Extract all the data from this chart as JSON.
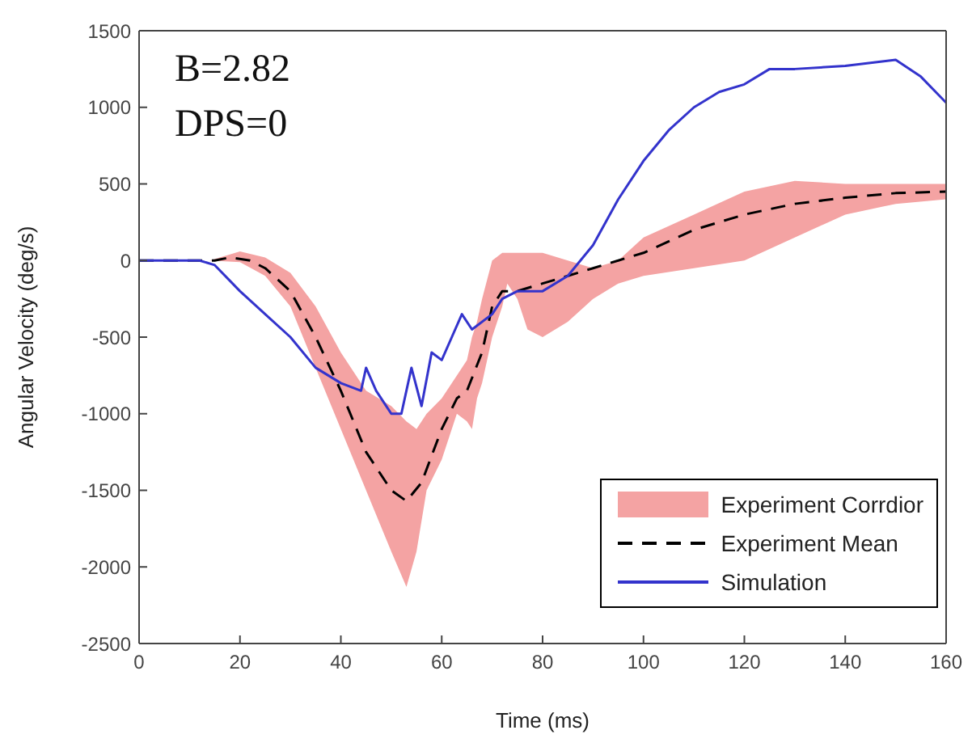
{
  "chart_data": {
    "type": "line",
    "xlabel": "Time (ms)",
    "ylabel": "Angular Velocity (deg/s)",
    "xlim": [
      0,
      160
    ],
    "xticks": [
      0,
      20,
      40,
      60,
      80,
      100,
      120,
      140,
      160
    ],
    "ylim": [
      -2500,
      1500
    ],
    "yticks": [
      -2500,
      -2000,
      -1500,
      -1000,
      -500,
      0,
      500,
      1000,
      1500
    ],
    "legend": "bottom right",
    "grid": false,
    "annotations": [
      "B=2.82",
      "DPS=0"
    ],
    "series": [
      {
        "name": "Experiment Corrdior",
        "type": "area",
        "color": "#f4a3a3",
        "x": [
          0,
          14,
          20,
          25,
          30,
          35,
          40,
          45,
          50,
          53,
          55,
          57,
          60,
          63,
          65,
          66,
          67,
          68,
          70,
          72,
          73,
          75,
          77,
          80,
          85,
          90,
          95,
          100,
          110,
          120,
          130,
          140,
          150,
          160
        ],
        "values": [
          null,
          null,
          null,
          null,
          null,
          null,
          null,
          null,
          null,
          null,
          null,
          null,
          null,
          null,
          null,
          null,
          null,
          null,
          null,
          null,
          null,
          null,
          null,
          null,
          null,
          null,
          null,
          null,
          null,
          null,
          null,
          null,
          null,
          null
        ],
        "lower": [
          0,
          0,
          -10,
          -100,
          -300,
          -700,
          -1100,
          -1500,
          -1900,
          -2130,
          -1900,
          -1500,
          -1300,
          -1000,
          -1050,
          -1100,
          -900,
          -800,
          -500,
          -300,
          -150,
          -250,
          -450,
          -500,
          -400,
          -250,
          -150,
          -100,
          -50,
          0,
          150,
          300,
          370,
          400
        ],
        "upper": [
          0,
          0,
          60,
          20,
          -80,
          -300,
          -600,
          -850,
          -950,
          -1050,
          -1100,
          -1000,
          -900,
          -750,
          -650,
          -500,
          -400,
          -250,
          0,
          50,
          50,
          50,
          50,
          50,
          0,
          -50,
          0,
          150,
          300,
          450,
          520,
          500,
          500,
          500
        ]
      },
      {
        "name": "Experiment Mean",
        "color": "#000000",
        "line_style": "dashed",
        "x": [
          0,
          15,
          18,
          22,
          25,
          30,
          35,
          40,
          45,
          50,
          53,
          56,
          60,
          63,
          65,
          68,
          70,
          72,
          75,
          80,
          85,
          90,
          95,
          100,
          110,
          120,
          130,
          140,
          150,
          160
        ],
        "values": [
          0,
          0,
          20,
          0,
          -50,
          -200,
          -500,
          -850,
          -1250,
          -1500,
          -1570,
          -1450,
          -1100,
          -900,
          -850,
          -600,
          -300,
          -200,
          -200,
          -150,
          -100,
          -50,
          0,
          50,
          200,
          300,
          370,
          410,
          440,
          450
        ]
      },
      {
        "name": "Simulation",
        "color": "#3333cc",
        "line_style": "solid",
        "x": [
          0,
          12,
          15,
          20,
          25,
          30,
          35,
          40,
          44,
          45,
          47,
          50,
          52,
          54,
          56,
          58,
          60,
          62,
          64,
          66,
          70,
          72,
          75,
          80,
          85,
          90,
          95,
          100,
          105,
          110,
          115,
          120,
          125,
          130,
          140,
          145,
          150,
          155,
          160
        ],
        "values": [
          0,
          0,
          -30,
          -200,
          -350,
          -500,
          -700,
          -800,
          -850,
          -700,
          -850,
          -1000,
          -1000,
          -700,
          -950,
          -600,
          -650,
          -500,
          -350,
          -450,
          -350,
          -250,
          -200,
          -200,
          -100,
          100,
          400,
          650,
          850,
          1000,
          1100,
          1150,
          1250,
          1250,
          1270,
          1290,
          1310,
          1200,
          1030
        ]
      }
    ]
  }
}
